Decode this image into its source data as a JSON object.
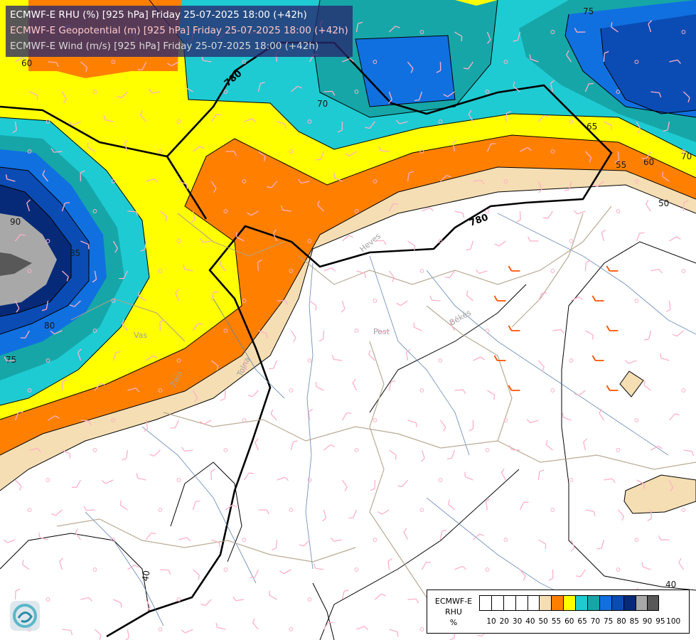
{
  "titles": [
    {
      "text": "ECMWF-E RHU (%) [925 hPa] Friday 25-07-2025 18:00 (+42h)",
      "color": "#ffffff"
    },
    {
      "text": "ECMWF-E Geopotential (m) [925 hPa] Friday 25-07-2025 18:00 (+42h)",
      "color": "#ffc8c8"
    },
    {
      "text": "ECMWF-E Wind (m/s) [925 hPa] Friday 25-07-2025 18:00 (+42h)",
      "color": "#d8d8d8"
    }
  ],
  "legend": {
    "title_lines": [
      "ECMWF-E",
      "RHU",
      "%"
    ],
    "colors": [
      "#ffffff",
      "#ffffff",
      "#ffffff",
      "#ffffff",
      "#ffffff",
      "#f5deb3",
      "#ff8000",
      "#ffff00",
      "#1ecbd2",
      "#16a6a8",
      "#1070e0",
      "#0a4cb4",
      "#062a78",
      "#a8a8a8",
      "#585858"
    ],
    "ticks": [
      "10",
      "20",
      "30",
      "40",
      "50",
      "55",
      "60",
      "65",
      "70",
      "75",
      "80",
      "85",
      "90",
      "95",
      "100"
    ]
  },
  "contour_labels": {
    "geopotential": [
      "780",
      "780"
    ],
    "rhu": [
      "60",
      "65",
      "70",
      "75",
      "55",
      "60",
      "70",
      "50",
      "40",
      "40",
      "90",
      "85",
      "80",
      "75",
      "60",
      "70"
    ]
  },
  "place_labels": [
    "Pest",
    "Békés",
    "Heves",
    "Tolna",
    "Vas",
    "Zala"
  ],
  "colors": {
    "geopotential_line": "#000000",
    "wind_barb_normal": "#ffb0c8",
    "wind_barb_strong": "#ff5000",
    "county_border": "#b2a28a",
    "river": "#5a7fb0"
  }
}
